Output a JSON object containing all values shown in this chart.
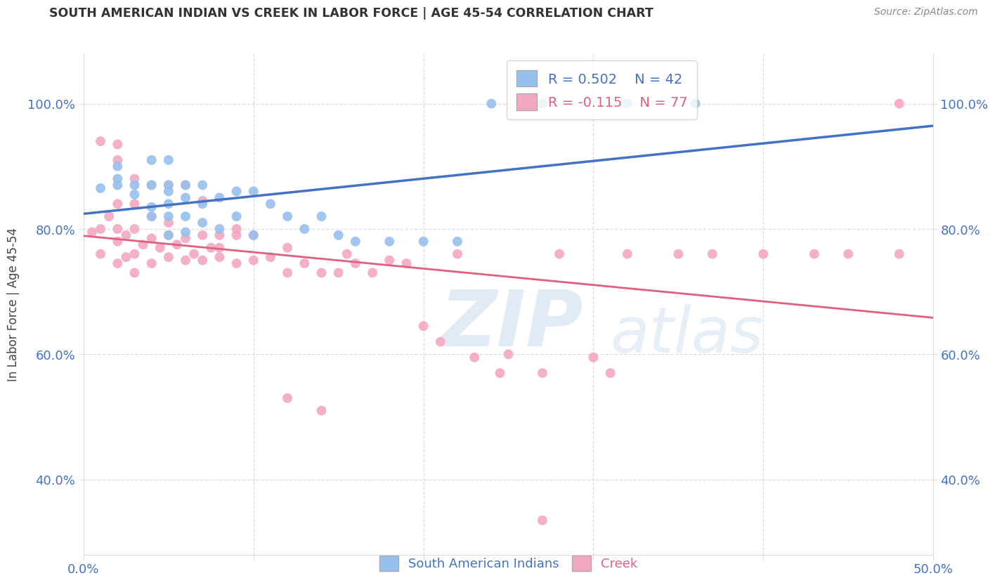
{
  "title": "SOUTH AMERICAN INDIAN VS CREEK IN LABOR FORCE | AGE 45-54 CORRELATION CHART",
  "source": "Source: ZipAtlas.com",
  "ylabel_label": "In Labor Force | Age 45-54",
  "legend_blue_label": "South American Indians",
  "legend_pink_label": "Creek",
  "r_blue": 0.502,
  "n_blue": 42,
  "r_pink": -0.115,
  "n_pink": 77,
  "blue_color": "#96C0EE",
  "pink_color": "#F4A8C0",
  "blue_line_color": "#4472C4",
  "pink_line_color": "#E06080",
  "tick_color": "#4472C4",
  "grid_color": "#DDDDDD",
  "title_color": "#333333",
  "source_color": "#888888",
  "xlim": [
    0.0,
    0.5
  ],
  "ylim": [
    0.28,
    1.08
  ],
  "xtick_positions": [
    0.0,
    0.1,
    0.2,
    0.3,
    0.4,
    0.5
  ],
  "xtick_labels_show": [
    "0.0%",
    "",
    "",
    "",
    "",
    "50.0%"
  ],
  "ytick_positions": [
    0.4,
    0.6,
    0.8,
    1.0
  ],
  "ytick_labels": [
    "40.0%",
    "60.0%",
    "80.0%",
    "100.0%"
  ],
  "blue_scatter_x": [
    0.01,
    0.02,
    0.02,
    0.02,
    0.03,
    0.03,
    0.04,
    0.04,
    0.04,
    0.04,
    0.05,
    0.05,
    0.05,
    0.05,
    0.05,
    0.05,
    0.06,
    0.06,
    0.06,
    0.06,
    0.07,
    0.07,
    0.07,
    0.08,
    0.08,
    0.09,
    0.09,
    0.1,
    0.1,
    0.11,
    0.12,
    0.13,
    0.14,
    0.15,
    0.16,
    0.18,
    0.2,
    0.22,
    0.24,
    0.27,
    0.32,
    0.36
  ],
  "blue_scatter_y": [
    0.865,
    0.87,
    0.88,
    0.9,
    0.855,
    0.87,
    0.82,
    0.835,
    0.87,
    0.91,
    0.79,
    0.82,
    0.84,
    0.86,
    0.87,
    0.91,
    0.795,
    0.82,
    0.85,
    0.87,
    0.81,
    0.84,
    0.87,
    0.8,
    0.85,
    0.82,
    0.86,
    0.79,
    0.86,
    0.84,
    0.82,
    0.8,
    0.82,
    0.79,
    0.78,
    0.78,
    0.78,
    0.78,
    1.0,
    1.0,
    1.0,
    1.0
  ],
  "pink_scatter_x": [
    0.005,
    0.01,
    0.01,
    0.015,
    0.02,
    0.02,
    0.02,
    0.02,
    0.025,
    0.025,
    0.03,
    0.03,
    0.03,
    0.03,
    0.035,
    0.04,
    0.04,
    0.04,
    0.045,
    0.05,
    0.05,
    0.05,
    0.055,
    0.06,
    0.06,
    0.065,
    0.07,
    0.07,
    0.075,
    0.08,
    0.08,
    0.09,
    0.09,
    0.1,
    0.1,
    0.11,
    0.12,
    0.12,
    0.13,
    0.14,
    0.15,
    0.155,
    0.16,
    0.17,
    0.18,
    0.19,
    0.2,
    0.21,
    0.22,
    0.23,
    0.245,
    0.25,
    0.27,
    0.28,
    0.3,
    0.31,
    0.32,
    0.35,
    0.37,
    0.4,
    0.43,
    0.45,
    0.48,
    0.48,
    0.01,
    0.02,
    0.02,
    0.03,
    0.04,
    0.05,
    0.06,
    0.07,
    0.08,
    0.09,
    0.12,
    0.14,
    0.27
  ],
  "pink_scatter_y": [
    0.795,
    0.76,
    0.8,
    0.82,
    0.745,
    0.78,
    0.8,
    0.84,
    0.755,
    0.79,
    0.73,
    0.76,
    0.8,
    0.84,
    0.775,
    0.745,
    0.785,
    0.82,
    0.77,
    0.755,
    0.79,
    0.81,
    0.775,
    0.75,
    0.785,
    0.76,
    0.75,
    0.79,
    0.77,
    0.755,
    0.79,
    0.745,
    0.79,
    0.75,
    0.79,
    0.755,
    0.73,
    0.77,
    0.745,
    0.73,
    0.73,
    0.76,
    0.745,
    0.73,
    0.75,
    0.745,
    0.645,
    0.62,
    0.76,
    0.595,
    0.57,
    0.6,
    0.57,
    0.76,
    0.595,
    0.57,
    0.76,
    0.76,
    0.76,
    0.76,
    0.76,
    0.76,
    0.76,
    1.0,
    0.94,
    0.91,
    0.935,
    0.88,
    0.87,
    0.87,
    0.87,
    0.845,
    0.77,
    0.8,
    0.53,
    0.51,
    0.335
  ]
}
